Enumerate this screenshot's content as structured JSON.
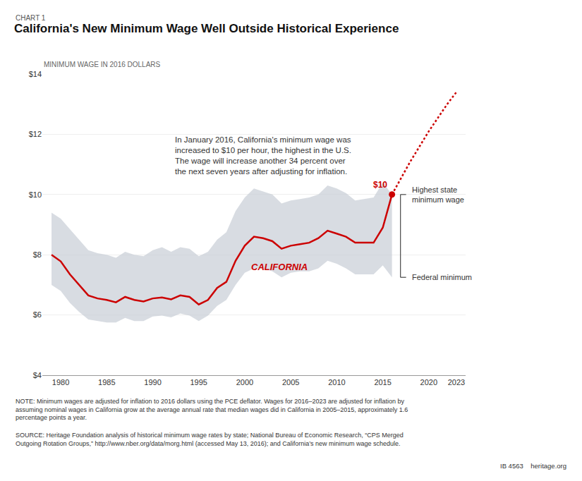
{
  "chart_data": {
    "type": "line",
    "subtitle": "CHART 1",
    "title": "California's New Minimum Wage Well Outside Historical Experience",
    "ylabel": "MINIMUM WAGE IN 2016 DOLLARS",
    "series": [
      {
        "type": "band",
        "color": "#c8cdd6",
        "x": [
          1979,
          1980,
          1981,
          1982,
          1983,
          1984,
          1985,
          1986,
          1987,
          1988,
          1989,
          1990,
          1991,
          1992,
          1993,
          1994,
          1995,
          1996,
          1997,
          1998,
          1999,
          2000,
          2001,
          2002,
          2003,
          2004,
          2005,
          2006,
          2007,
          2008,
          2009,
          2010,
          2011,
          2012,
          2013,
          2014,
          2015,
          2016
        ],
        "lower": [
          7.0,
          6.8,
          6.4,
          6.1,
          5.85,
          5.8,
          5.75,
          5.75,
          5.9,
          5.8,
          5.8,
          5.95,
          5.98,
          5.92,
          6.05,
          5.98,
          5.8,
          5.98,
          6.3,
          6.5,
          7.0,
          7.4,
          7.55,
          7.55,
          7.45,
          7.25,
          7.4,
          7.45,
          7.45,
          7.55,
          7.8,
          7.7,
          7.55,
          7.35,
          7.35,
          7.35,
          7.65,
          7.25
        ],
        "upper": [
          9.4,
          9.2,
          8.85,
          8.5,
          8.15,
          8.05,
          8.0,
          7.9,
          8.1,
          8.0,
          7.95,
          8.15,
          8.25,
          8.1,
          8.25,
          8.2,
          7.95,
          8.1,
          8.5,
          8.75,
          9.45,
          9.9,
          10.2,
          10.1,
          10.0,
          9.7,
          9.8,
          9.85,
          9.9,
          10.0,
          10.3,
          10.2,
          10.05,
          9.8,
          9.85,
          9.9,
          10.4,
          10.0
        ]
      },
      {
        "type": "line",
        "label": "CALIFORNIA",
        "color": "#cc0000",
        "line_style": "solid",
        "x": [
          1979,
          1980,
          1981,
          1982,
          1983,
          1984,
          1985,
          1986,
          1987,
          1988,
          1989,
          1990,
          1991,
          1992,
          1993,
          1994,
          1995,
          1996,
          1997,
          1998,
          1999,
          2000,
          2001,
          2002,
          2003,
          2004,
          2005,
          2006,
          2007,
          2008,
          2009,
          2010,
          2011,
          2012,
          2013,
          2014,
          2015,
          2016
        ],
        "values": [
          8.0,
          7.78,
          7.35,
          7.0,
          6.65,
          6.55,
          6.5,
          6.42,
          6.6,
          6.5,
          6.45,
          6.55,
          6.58,
          6.52,
          6.65,
          6.6,
          6.35,
          6.5,
          6.9,
          7.1,
          7.8,
          8.3,
          8.6,
          8.55,
          8.45,
          8.2,
          8.3,
          8.35,
          8.4,
          8.55,
          8.8,
          8.7,
          8.6,
          8.4,
          8.4,
          8.4,
          8.9,
          10.0
        ]
      },
      {
        "type": "line",
        "color": "#cc0000",
        "line_style": "dotted",
        "x": [
          2016,
          2017,
          2018,
          2019,
          2020,
          2021,
          2022,
          2023
        ],
        "values": [
          10.0,
          10.55,
          11.1,
          11.6,
          12.1,
          12.55,
          13.0,
          13.4
        ]
      },
      {
        "type": "scatter",
        "marker": "circle",
        "color": "#cc0000",
        "x": [
          2016
        ],
        "values": [
          10.0
        ],
        "value_labels": [
          "$10"
        ]
      }
    ],
    "bracket": {
      "x": 2016,
      "values": [
        10.0,
        7.25
      ],
      "labels": [
        "Highest state\nminimum wage",
        "Federal minimum"
      ],
      "color": "#555555"
    },
    "annotations": [
      "In January 2016, California's minimum wage was\nincreased to $10 per hour, the highest in the U.S.\nThe wage will increase another 34 percent over\nthe next seven years after adjusting for inflation."
    ],
    "notes": [
      "NOTE: Minimum wages are adjusted for inflation to 2016 dollars using the PCE deflator. Wages for 2016–2023 are adjusted for inflation by\nassuming nominal wages in California grow at the average annual rate that median wages did in California in 2005–2015, approximately 1.6\npercentage points a year.",
      "SOURCE: Heritage Foundation analysis of historical minimum wage rates by state; National Bureau of Economic Research, “CPS Merged\nOutgoing Rotation Groups,” http://www.nber.org/data/morg.html (accessed May 13, 2016); and California’s new minimum wage schedule.",
      "IB 4563    heritage.org"
    ],
    "xlim": [
      1978,
      2024
    ],
    "ylim": [
      4,
      14
    ],
    "xticks": [
      1980,
      1985,
      1990,
      1995,
      2000,
      2005,
      2010,
      2015,
      2020,
      2023
    ],
    "yticks": [
      {
        "value": 4,
        "label": "$4"
      },
      {
        "value": 6,
        "label": "$6"
      },
      {
        "value": 8,
        "label": "$8"
      },
      {
        "value": 10,
        "label": "$10"
      },
      {
        "value": 12,
        "label": "$12"
      },
      {
        "value": 14,
        "label": "$14"
      }
    ],
    "grid": true
  }
}
